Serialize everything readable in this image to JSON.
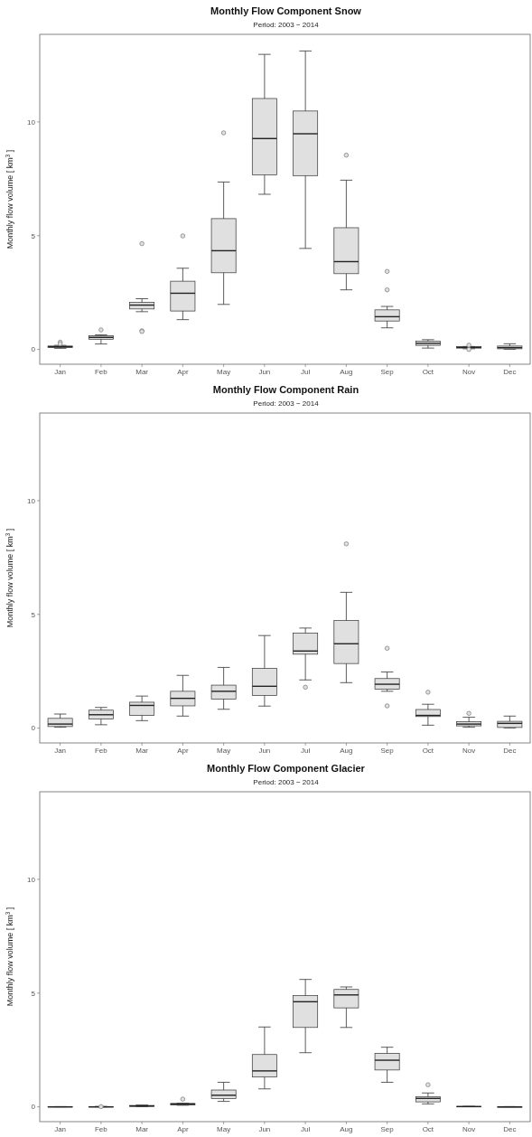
{
  "chart_data": [
    {
      "type": "box",
      "title": "Monthly Flow Component Snow",
      "subtitle": "Period: 2003 − 2014",
      "ylabel": "Monthly flow volume  [ km$^{3}$ ]",
      "categories": [
        "Jan",
        "Feb",
        "Mar",
        "Apr",
        "May",
        "Jun",
        "Jul",
        "Aug",
        "Sep",
        "Oct",
        "Nov",
        "Dec"
      ],
      "ylim": [
        -0.65,
        13.85
      ],
      "yticks": [
        0,
        5,
        10
      ],
      "grid": false,
      "series": [
        {
          "color": "#e0e0e0",
          "boxes": [
            {
              "low": 0.05,
              "q1": 0.09,
              "median": 0.12,
              "q3": 0.15,
              "high": 0.18,
              "outliers": [
                0.32,
                0.25
              ]
            },
            {
              "low": 0.24,
              "q1": 0.45,
              "median": 0.53,
              "q3": 0.6,
              "high": 0.64,
              "outliers": [
                0.86
              ]
            },
            {
              "low": 1.66,
              "q1": 1.78,
              "median": 1.95,
              "q3": 2.07,
              "high": 2.23,
              "outliers": [
                4.65,
                0.82,
                0.79
              ]
            },
            {
              "low": 1.31,
              "q1": 1.69,
              "median": 2.47,
              "q3": 3.0,
              "high": 3.57,
              "outliers": [
                4.99
              ]
            },
            {
              "low": 1.98,
              "q1": 3.37,
              "median": 4.34,
              "q3": 5.75,
              "high": 7.36,
              "outliers": [
                9.52
              ]
            },
            {
              "low": 6.82,
              "q1": 7.67,
              "median": 9.27,
              "q3": 11.03,
              "high": 12.97
            },
            {
              "low": 4.44,
              "q1": 7.64,
              "median": 9.48,
              "q3": 10.48,
              "high": 13.12
            },
            {
              "low": 2.62,
              "q1": 3.33,
              "median": 3.86,
              "q3": 5.35,
              "high": 7.44,
              "outliers": [
                8.54
              ]
            },
            {
              "low": 0.95,
              "q1": 1.25,
              "median": 1.44,
              "q3": 1.74,
              "high": 1.89,
              "outliers": [
                3.43,
                2.62
              ]
            },
            {
              "low": 0.06,
              "q1": 0.18,
              "median": 0.27,
              "q3": 0.36,
              "high": 0.43
            },
            {
              "low": 0.03,
              "q1": 0.06,
              "median": 0.09,
              "q3": 0.12,
              "high": 0.13,
              "outliers": [
                0.19,
                0.0
              ]
            },
            {
              "low": 0.01,
              "q1": 0.03,
              "median": 0.08,
              "q3": 0.15,
              "high": 0.25
            }
          ]
        }
      ]
    },
    {
      "type": "box",
      "title": "Monthly Flow Component Rain",
      "subtitle": "Period: 2003 − 2014",
      "ylabel": "Monthly flow volume  [ km$^{3}$ ]",
      "categories": [
        "Jan",
        "Feb",
        "Mar",
        "Apr",
        "May",
        "Jun",
        "Jul",
        "Aug",
        "Sep",
        "Oct",
        "Nov",
        "Dec"
      ],
      "ylim": [
        -0.65,
        13.85
      ],
      "yticks": [
        0,
        5,
        10
      ],
      "grid": false,
      "series": [
        {
          "color": "#e0e0e0",
          "boxes": [
            {
              "low": 0.04,
              "q1": 0.07,
              "median": 0.18,
              "q3": 0.43,
              "high": 0.62
            },
            {
              "low": 0.15,
              "q1": 0.4,
              "median": 0.59,
              "q3": 0.79,
              "high": 0.91
            },
            {
              "low": 0.33,
              "q1": 0.56,
              "median": 1.0,
              "q3": 1.14,
              "high": 1.41
            },
            {
              "low": 0.53,
              "q1": 0.98,
              "median": 1.31,
              "q3": 1.62,
              "high": 2.32
            },
            {
              "low": 0.83,
              "q1": 1.28,
              "median": 1.62,
              "q3": 1.89,
              "high": 2.67
            },
            {
              "low": 0.97,
              "q1": 1.43,
              "median": 1.84,
              "q3": 2.63,
              "high": 4.07
            },
            {
              "low": 2.12,
              "q1": 3.25,
              "median": 3.39,
              "q3": 4.18,
              "high": 4.4,
              "outliers": [
                1.8
              ]
            },
            {
              "low": 2.0,
              "q1": 2.84,
              "median": 3.71,
              "q3": 4.73,
              "high": 5.97,
              "outliers": [
                8.1
              ]
            },
            {
              "low": 1.62,
              "q1": 1.71,
              "median": 1.93,
              "q3": 2.18,
              "high": 2.47,
              "outliers": [
                3.51,
                0.98
              ]
            },
            {
              "low": 0.13,
              "q1": 0.51,
              "median": 0.56,
              "q3": 0.82,
              "high": 1.05,
              "outliers": [
                1.58
              ]
            },
            {
              "low": 0.04,
              "q1": 0.1,
              "median": 0.18,
              "q3": 0.28,
              "high": 0.48,
              "outliers": [
                0.65
              ]
            },
            {
              "low": 0.01,
              "q1": 0.03,
              "median": 0.21,
              "q3": 0.3,
              "high": 0.53
            }
          ]
        }
      ]
    },
    {
      "type": "box",
      "title": "Monthly Flow Component Glacier",
      "subtitle": "Period: 2003 − 2014",
      "ylabel": "Monthly flow volume  [ km$^{3}$ ]",
      "categories": [
        "Jan",
        "Feb",
        "Mar",
        "Apr",
        "May",
        "Jun",
        "Jul",
        "Aug",
        "Sep",
        "Oct",
        "Nov",
        "Dec"
      ],
      "ylim": [
        -0.65,
        13.85
      ],
      "yticks": [
        0,
        5,
        10
      ],
      "grid": false,
      "series": [
        {
          "color": "#e0e0e0",
          "boxes": [
            {
              "low": 0.0,
              "q1": 0.0,
              "median": 0.0,
              "q3": 0.01,
              "high": 0.01
            },
            {
              "low": 0.0,
              "q1": 0.0,
              "median": 0.0,
              "q3": 0.01,
              "high": 0.02,
              "outliers": [
                0.01
              ]
            },
            {
              "low": 0.01,
              "q1": 0.02,
              "median": 0.04,
              "q3": 0.06,
              "high": 0.08
            },
            {
              "low": 0.07,
              "q1": 0.09,
              "median": 0.12,
              "q3": 0.15,
              "high": 0.16,
              "outliers": [
                0.34
              ]
            },
            {
              "low": 0.24,
              "q1": 0.36,
              "median": 0.51,
              "q3": 0.74,
              "high": 1.08
            },
            {
              "low": 0.79,
              "q1": 1.31,
              "median": 1.58,
              "q3": 2.3,
              "high": 3.51
            },
            {
              "low": 2.38,
              "q1": 3.49,
              "median": 4.62,
              "q3": 4.89,
              "high": 5.6
            },
            {
              "low": 3.49,
              "q1": 4.35,
              "median": 4.92,
              "q3": 5.16,
              "high": 5.27
            },
            {
              "low": 1.08,
              "q1": 1.62,
              "median": 2.05,
              "q3": 2.35,
              "high": 2.62
            },
            {
              "low": 0.13,
              "q1": 0.22,
              "median": 0.37,
              "q3": 0.45,
              "high": 0.61,
              "outliers": [
                0.97
              ]
            },
            {
              "low": 0.01,
              "q1": 0.01,
              "median": 0.01,
              "q3": 0.02,
              "high": 0.02
            },
            {
              "low": 0.0,
              "q1": 0.0,
              "median": 0.0,
              "q3": 0.0,
              "high": 0.01
            }
          ]
        }
      ]
    }
  ]
}
